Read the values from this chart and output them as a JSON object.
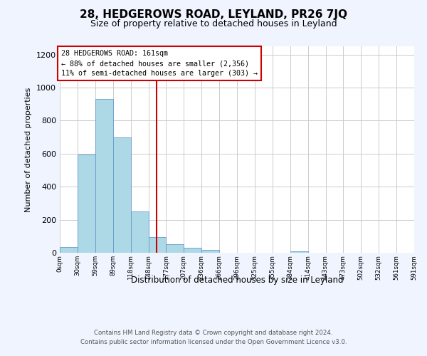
{
  "title": "28, HEDGEROWS ROAD, LEYLAND, PR26 7JQ",
  "subtitle": "Size of property relative to detached houses in Leyland",
  "xlabel": "Distribution of detached houses by size in Leyland",
  "ylabel": "Number of detached properties",
  "bin_edges": [
    0,
    29.5,
    59,
    88.5,
    118,
    147.5,
    177,
    206.5,
    236,
    265.5,
    295,
    324.5,
    354,
    383.5,
    413,
    442.5,
    472,
    501.5,
    531,
    560.5,
    590
  ],
  "bin_counts": [
    35,
    595,
    930,
    700,
    248,
    94,
    52,
    30,
    18,
    0,
    0,
    0,
    0,
    8,
    0,
    0,
    0,
    0,
    0,
    0
  ],
  "bar_color": "#add8e6",
  "bar_edge_color": "#6699cc",
  "tick_labels": [
    "0sqm",
    "30sqm",
    "59sqm",
    "89sqm",
    "118sqm",
    "148sqm",
    "177sqm",
    "207sqm",
    "236sqm",
    "266sqm",
    "296sqm",
    "325sqm",
    "355sqm",
    "384sqm",
    "414sqm",
    "443sqm",
    "473sqm",
    "502sqm",
    "532sqm",
    "561sqm",
    "591sqm"
  ],
  "property_line_x": 161,
  "property_line_color": "#cc0000",
  "annotation_title": "28 HEDGEROWS ROAD: 161sqm",
  "annotation_line1": "← 88% of detached houses are smaller (2,356)",
  "annotation_line2": "11% of semi-detached houses are larger (303) →",
  "annotation_box_color": "#ffffff",
  "annotation_box_edge": "#cc0000",
  "ylim": [
    0,
    1250
  ],
  "yticks": [
    0,
    200,
    400,
    600,
    800,
    1000,
    1200
  ],
  "footer_line1": "Contains HM Land Registry data © Crown copyright and database right 2024.",
  "footer_line2": "Contains public sector information licensed under the Open Government Licence v3.0.",
  "bg_color": "#f0f4ff",
  "plot_bg_color": "#ffffff",
  "grid_color": "#cccccc"
}
